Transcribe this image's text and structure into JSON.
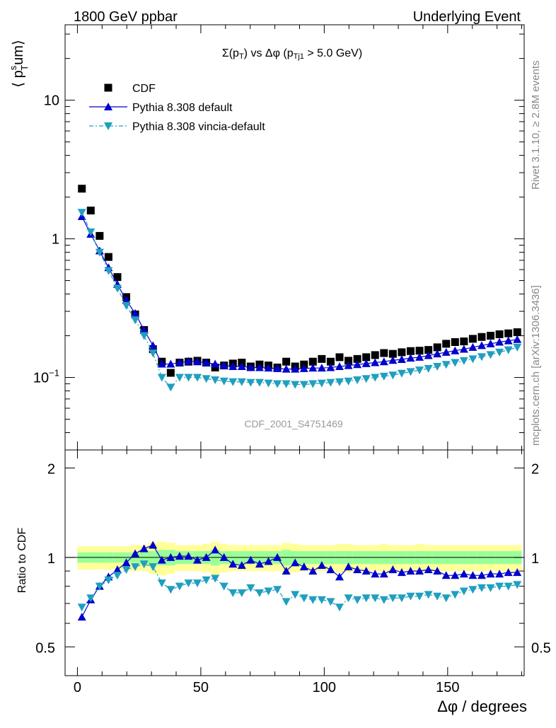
{
  "header": {
    "left": "1800 GeV ppbar",
    "right": "Underlying Event"
  },
  "side_labels": {
    "rivet": "Rivet 3.1.10, ≥ 2.8M events",
    "mcplots": "mcplots.cern.ch [arXiv:1306.3436]"
  },
  "main_plot": {
    "title": "Σ(p_T) vs Δφ (p_Tj1 > 5.0 GeV)",
    "ylabel": "⟨ p_T^s um⟩",
    "watermark": "CDF_2001_S4751469",
    "y_ticks": [
      "10⁻¹",
      "1",
      "10"
    ]
  },
  "ratio_plot": {
    "ylabel": "Ratio to CDF",
    "y_ticks": [
      "0.5",
      "1",
      "2"
    ]
  },
  "x_axis": {
    "label": "Δφ / degrees",
    "ticks": [
      "0",
      "50",
      "100",
      "150"
    ]
  },
  "legend": [
    {
      "name": "CDF",
      "color": "#000000",
      "marker": "square"
    },
    {
      "name": "Pythia 8.308 default",
      "color": "#0000cc",
      "marker": "triangle-up"
    },
    {
      "name": "Pythia 8.308 vincia-default",
      "color": "#1f9fbf",
      "marker": "triangle-down"
    }
  ],
  "colors": {
    "band_inner": "#99ff99",
    "band_outer": "#ffff99"
  },
  "chart_data": {
    "type": "scatter",
    "x": [
      1.8,
      5.4,
      9,
      12.6,
      16.2,
      19.8,
      23.4,
      27,
      30.6,
      34.2,
      37.8,
      41.4,
      45,
      48.6,
      52.2,
      55.8,
      59.4,
      63,
      66.6,
      70.2,
      73.8,
      77.4,
      81,
      84.6,
      88.2,
      91.8,
      95.4,
      99,
      102.6,
      106.2,
      109.8,
      113.4,
      117,
      120.6,
      124.2,
      127.8,
      131.4,
      135,
      138.6,
      142.2,
      145.8,
      149.4,
      153,
      156.6,
      160.2,
      163.8,
      167.4,
      171,
      174.6,
      178.2
    ],
    "series": [
      {
        "name": "CDF",
        "values": [
          2.3,
          1.6,
          1.05,
          0.74,
          0.53,
          0.38,
          0.285,
          0.22,
          0.16,
          0.13,
          0.108,
          0.128,
          0.13,
          0.132,
          0.128,
          0.118,
          0.122,
          0.126,
          0.128,
          0.12,
          0.124,
          0.122,
          0.118,
          0.13,
          0.12,
          0.124,
          0.13,
          0.136,
          0.13,
          0.14,
          0.132,
          0.136,
          0.14,
          0.145,
          0.15,
          0.148,
          0.152,
          0.155,
          0.156,
          0.158,
          0.165,
          0.175,
          0.18,
          0.182,
          0.19,
          0.196,
          0.2,
          0.205,
          0.208,
          0.212
        ]
      },
      {
        "name": "Pythia 8.308 default",
        "values": [
          1.45,
          1.08,
          0.82,
          0.62,
          0.47,
          0.36,
          0.29,
          0.22,
          0.17,
          0.125,
          0.125,
          0.128,
          0.131,
          0.13,
          0.128,
          0.125,
          0.122,
          0.12,
          0.12,
          0.118,
          0.118,
          0.117,
          0.116,
          0.115,
          0.115,
          0.116,
          0.117,
          0.117,
          0.118,
          0.12,
          0.122,
          0.124,
          0.126,
          0.128,
          0.13,
          0.133,
          0.135,
          0.138,
          0.14,
          0.144,
          0.148,
          0.152,
          0.156,
          0.16,
          0.165,
          0.17,
          0.175,
          0.18,
          0.184,
          0.188
        ]
      },
      {
        "name": "Pythia 8.308 vincia-default",
        "values": [
          1.55,
          1.12,
          0.8,
          0.59,
          0.44,
          0.33,
          0.26,
          0.2,
          0.15,
          0.1,
          0.085,
          0.1,
          0.1,
          0.1,
          0.098,
          0.096,
          0.094,
          0.093,
          0.093,
          0.092,
          0.092,
          0.091,
          0.09,
          0.09,
          0.089,
          0.089,
          0.09,
          0.091,
          0.092,
          0.093,
          0.094,
          0.096,
          0.098,
          0.1,
          0.102,
          0.104,
          0.107,
          0.11,
          0.113,
          0.116,
          0.12,
          0.124,
          0.128,
          0.132,
          0.136,
          0.141,
          0.146,
          0.152,
          0.158,
          0.165
        ]
      }
    ],
    "ratio": {
      "Pythia 8.308 default": [
        0.63,
        0.72,
        0.8,
        0.86,
        0.91,
        0.96,
        1.03,
        1.07,
        1.1,
        0.98,
        1.0,
        1.01,
        1.01,
        0.98,
        1.0,
        1.06,
        1.0,
        0.95,
        0.94,
        0.98,
        0.95,
        0.97,
        1.0,
        0.9,
        0.96,
        0.93,
        0.9,
        0.94,
        0.91,
        0.86,
        0.93,
        0.91,
        0.9,
        0.88,
        0.88,
        0.91,
        0.89,
        0.9,
        0.9,
        0.91,
        0.9,
        0.87,
        0.87,
        0.88,
        0.87,
        0.87,
        0.88,
        0.88,
        0.89,
        0.89
      ],
      "Pythia 8.308 vincia-default": [
        0.68,
        0.73,
        0.8,
        0.84,
        0.87,
        0.91,
        0.93,
        0.95,
        0.93,
        0.82,
        0.78,
        0.8,
        0.82,
        0.82,
        0.84,
        0.85,
        0.8,
        0.76,
        0.76,
        0.79,
        0.76,
        0.77,
        0.78,
        0.71,
        0.75,
        0.73,
        0.72,
        0.72,
        0.71,
        0.68,
        0.73,
        0.72,
        0.73,
        0.73,
        0.72,
        0.73,
        0.73,
        0.74,
        0.74,
        0.75,
        0.74,
        0.73,
        0.75,
        0.77,
        0.78,
        0.79,
        0.79,
        0.8,
        0.8,
        0.81
      ]
    },
    "band": {
      "inner": [
        0.04,
        0.04,
        0.04,
        0.04,
        0.04,
        0.04,
        0.04,
        0.05,
        0.05,
        0.06,
        0.06,
        0.05,
        0.05,
        0.05,
        0.05,
        0.06,
        0.05,
        0.05,
        0.05,
        0.05,
        0.05,
        0.05,
        0.05,
        0.06,
        0.05,
        0.05,
        0.05,
        0.05,
        0.05,
        0.05,
        0.05,
        0.05,
        0.05,
        0.05,
        0.05,
        0.05,
        0.05,
        0.05,
        0.05,
        0.05,
        0.05,
        0.05,
        0.05,
        0.05,
        0.05,
        0.05,
        0.05,
        0.05,
        0.05,
        0.05
      ],
      "outer": [
        0.09,
        0.09,
        0.09,
        0.09,
        0.09,
        0.09,
        0.1,
        0.1,
        0.12,
        0.13,
        0.12,
        0.1,
        0.1,
        0.1,
        0.11,
        0.13,
        0.11,
        0.1,
        0.1,
        0.1,
        0.1,
        0.1,
        0.1,
        0.12,
        0.11,
        0.1,
        0.1,
        0.1,
        0.1,
        0.11,
        0.11,
        0.1,
        0.1,
        0.1,
        0.11,
        0.1,
        0.1,
        0.1,
        0.11,
        0.1,
        0.1,
        0.1,
        0.1,
        0.1,
        0.1,
        0.1,
        0.1,
        0.1,
        0.1,
        0.1
      ]
    },
    "xlim": [
      -5,
      181
    ],
    "ylim": [
      0.03,
      35
    ],
    "ratio_ylim": [
      0.4,
      2.3
    ],
    "yscale": "log",
    "ratio_yscale": "log",
    "legend_position": "top-left"
  }
}
